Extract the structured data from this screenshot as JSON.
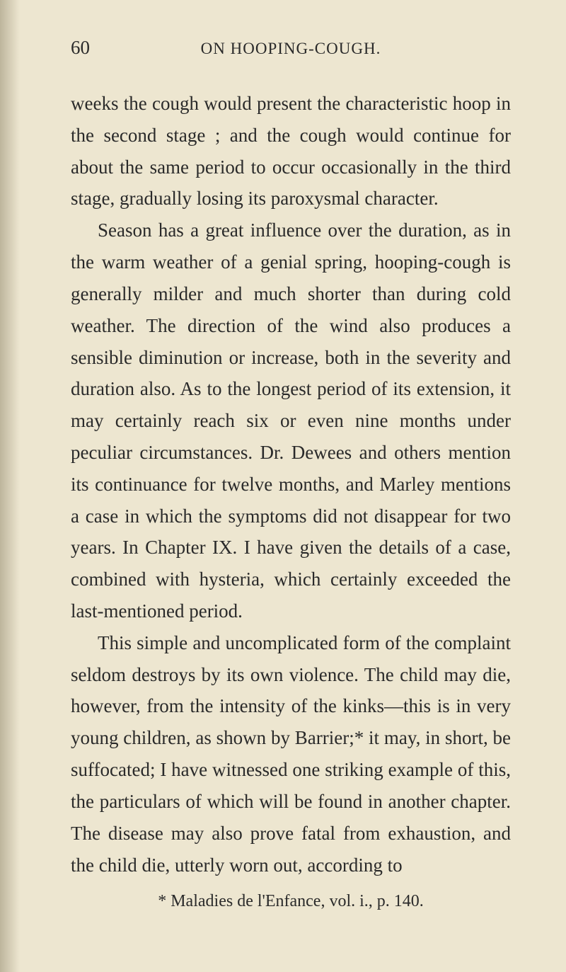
{
  "page_number": "60",
  "running_head": "ON HOOPING-COUGH.",
  "paragraphs": {
    "p1": "weeks the cough would present the characteristic hoop in the second stage ; and the cough would continue for about the same period to occur oc­casionally in the third stage, gradually losing its paroxysmal character.",
    "p2": "Season has a great influence over the duration, as in the warm weather of a genial spring, hooping-cough is generally milder and much shorter than during cold weather. The direction of the wind also produces a sensible diminution or increase, both in the severity and duration also. As to the longest period of its extension, it may certainly reach six or even nine months under peculiar cir­cumstances. Dr. Dewees and others mention its continuance for twelve months, and Marley men­tions a case in which the symptoms did not dis­appear for two years. In Chapter IX. I have given the details of a case, combined with hysteria, which certainly exceeded the last-mentioned period.",
    "p3": "This simple and uncomplicated form of the com­plaint seldom destroys by its own violence. The child may die, however, from the intensity of the kinks—this is in very young children, as shown by Barrier;* it may, in short, be suffocated; I have witnessed one striking example of this, the par­ticulars of which will be found in another chapter. The disease may also prove fatal from exhaustion, and the child die, utterly worn out, according to"
  },
  "footnote": "* Maladies de l'Enfance, vol. i., p. 140.",
  "colors": {
    "background": "#ede6d0",
    "text": "#2a2a2a"
  },
  "typography": {
    "body_fontsize": 27,
    "header_fontsize": 23,
    "footnote_fontsize": 24,
    "line_height": 1.66,
    "font_family": "Georgia, Times New Roman, serif"
  }
}
